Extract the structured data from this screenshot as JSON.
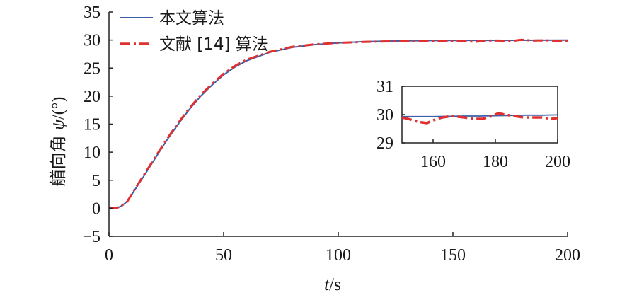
{
  "chart_data": [
    {
      "type": "line",
      "xlabel": "t/s",
      "ylabel": "艏向角 ψ/(°)",
      "xlim": [
        0,
        200
      ],
      "ylim": [
        -5,
        35
      ],
      "xticks": [
        "0",
        "50",
        "100",
        "150",
        "200"
      ],
      "yticks": [
        "−5",
        "0",
        "5",
        "10",
        "15",
        "20",
        "25",
        "30",
        "35"
      ],
      "grid": false,
      "legend": "top-left",
      "series": [
        {
          "name": "本文算法",
          "color": "#3a5fa8",
          "style": "solid",
          "x": [
            0,
            3,
            5,
            8,
            10,
            15,
            20,
            25,
            30,
            35,
            40,
            45,
            50,
            55,
            60,
            70,
            80,
            90,
            100,
            110,
            120,
            130,
            140,
            150,
            160,
            170,
            180,
            190,
            200
          ],
          "y": [
            0,
            0,
            0.3,
            1.2,
            2.5,
            5.6,
            8.8,
            12.0,
            14.9,
            17.6,
            20.0,
            22.0,
            23.8,
            25.2,
            26.3,
            27.8,
            28.7,
            29.2,
            29.5,
            29.7,
            29.8,
            29.85,
            29.9,
            29.92,
            29.93,
            29.94,
            29.96,
            29.97,
            29.98
          ]
        },
        {
          "name": "文献 [14] 算法",
          "color": "#e03030",
          "style": "dashdot",
          "x": [
            0,
            3,
            5,
            8,
            10,
            15,
            20,
            25,
            30,
            35,
            40,
            45,
            50,
            55,
            60,
            70,
            80,
            90,
            100,
            110,
            120,
            130,
            140,
            150,
            155,
            160,
            165,
            170,
            175,
            180,
            185,
            190,
            195,
            200
          ],
          "y": [
            0,
            0,
            0.3,
            1.2,
            2.6,
            5.8,
            9.0,
            12.2,
            15.1,
            17.8,
            20.2,
            22.2,
            24.0,
            25.4,
            26.5,
            27.9,
            28.8,
            29.25,
            29.5,
            29.65,
            29.75,
            29.8,
            29.85,
            29.85,
            29.8,
            29.7,
            29.9,
            29.9,
            29.8,
            30.05,
            29.9,
            29.95,
            29.85,
            29.85
          ]
        }
      ]
    },
    {
      "type": "line",
      "xlim": [
        150,
        200
      ],
      "ylim": [
        29,
        31
      ],
      "xticks": [
        "160",
        "180",
        "200"
      ],
      "yticks": [
        "29",
        "30",
        "31"
      ],
      "grid": false,
      "series": [
        {
          "name": "本文算法",
          "color": "#3a5fa8",
          "style": "solid",
          "x": [
            150,
            155,
            160,
            165,
            170,
            175,
            180,
            185,
            190,
            195,
            200
          ],
          "y": [
            29.93,
            29.93,
            29.93,
            29.94,
            29.95,
            29.95,
            29.96,
            29.97,
            29.98,
            29.98,
            29.99
          ]
        },
        {
          "name": "文献 [14] 算法",
          "color": "#e03030",
          "style": "dashdot",
          "x": [
            150,
            152,
            155,
            158,
            160,
            163,
            166,
            170,
            173,
            176,
            179,
            181,
            183,
            186,
            189,
            192,
            195,
            198,
            200
          ],
          "y": [
            29.9,
            29.85,
            29.75,
            29.7,
            29.8,
            29.9,
            29.95,
            29.9,
            29.85,
            29.85,
            29.95,
            30.05,
            30.0,
            29.95,
            29.9,
            29.9,
            29.9,
            29.85,
            29.88
          ]
        }
      ]
    }
  ]
}
